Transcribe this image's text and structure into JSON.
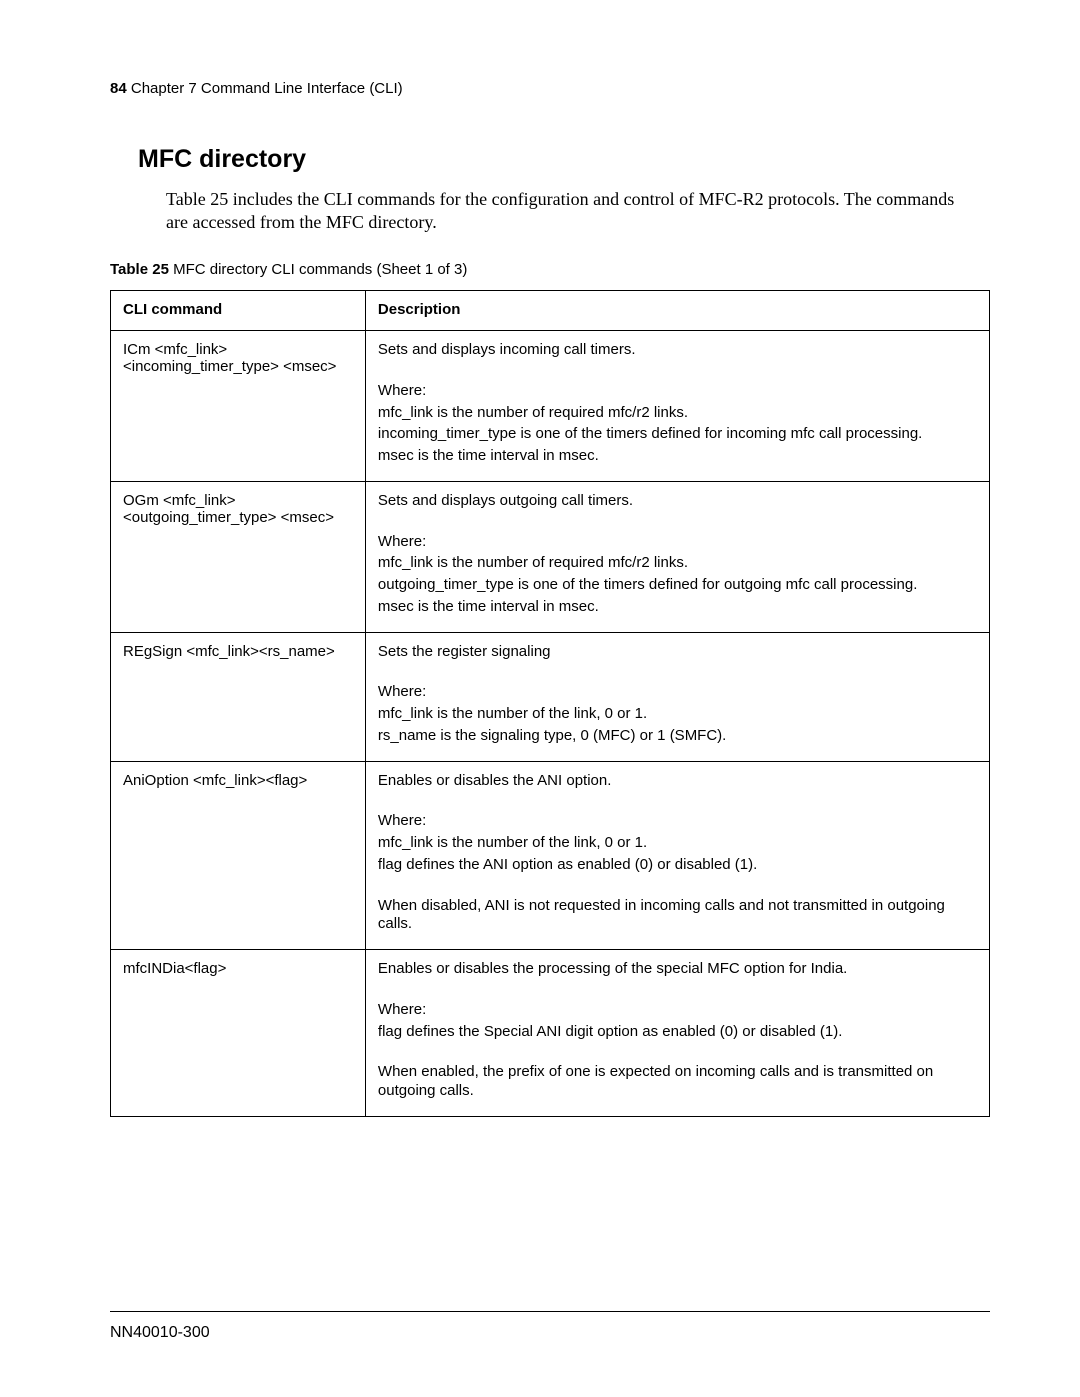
{
  "header": {
    "page_number": "84",
    "chapter_text": " Chapter 7 Command Line Interface (CLI)"
  },
  "section": {
    "title": "MFC directory",
    "intro": "Table 25 includes the CLI commands for the configuration and control of MFC-R2 protocols. The commands are accessed from the MFC directory."
  },
  "table": {
    "caption_label": "Table 25",
    "caption_rest": "   MFC directory CLI commands (Sheet 1 of 3)",
    "head_col1": "CLI command",
    "head_col2": "Description",
    "rows": [
      {
        "cmd_l1": "ICm <mfc_link>",
        "cmd_l2": "<incoming_timer_type> <msec>",
        "d1": "Sets and displays incoming call timers.",
        "d2": "Where:",
        "d3": "mfc_link is the number of required mfc/r2 links.",
        "d4": "incoming_timer_type is one of the timers defined for incoming mfc call processing.",
        "d5": "msec is the time interval in msec."
      },
      {
        "cmd_l1": "OGm <mfc_link>",
        "cmd_l2": "<outgoing_timer_type> <msec>",
        "d1": "Sets and displays outgoing call timers.",
        "d2": "Where:",
        "d3": "mfc_link is the number of required mfc/r2 links.",
        "d4": "outgoing_timer_type is one of the timers defined for outgoing mfc call processing.",
        "d5": "msec is the time interval in msec."
      },
      {
        "cmd_l1": "REgSign <mfc_link><rs_name>",
        "d1": "Sets the register signaling",
        "d2": "Where:",
        "d3": "mfc_link is the number of the link, 0 or 1.",
        "d4": "rs_name is the signaling type, 0 (MFC) or 1 (SMFC)."
      },
      {
        "cmd_l1": "AniOption <mfc_link><flag>",
        "d1": "Enables or disables the ANI option.",
        "d2": "Where:",
        "d3": "mfc_link is the number of the link, 0 or 1.",
        "d4": "flag defines the ANI option as enabled (0) or disabled (1).",
        "d5": "When disabled, ANI is not requested in incoming calls and not transmitted in outgoing calls."
      },
      {
        "cmd_l1": "mfcINDia<flag>",
        "d1": "Enables or disables the processing of the special MFC option for India.",
        "d2": "Where:",
        "d3": "flag defines the Special ANI digit option as enabled (0) or disabled (1).",
        "d4": "When enabled, the prefix of one is expected on incoming calls and is transmitted on outgoing calls."
      }
    ]
  },
  "footer": {
    "doc_id": "NN40010-300"
  }
}
